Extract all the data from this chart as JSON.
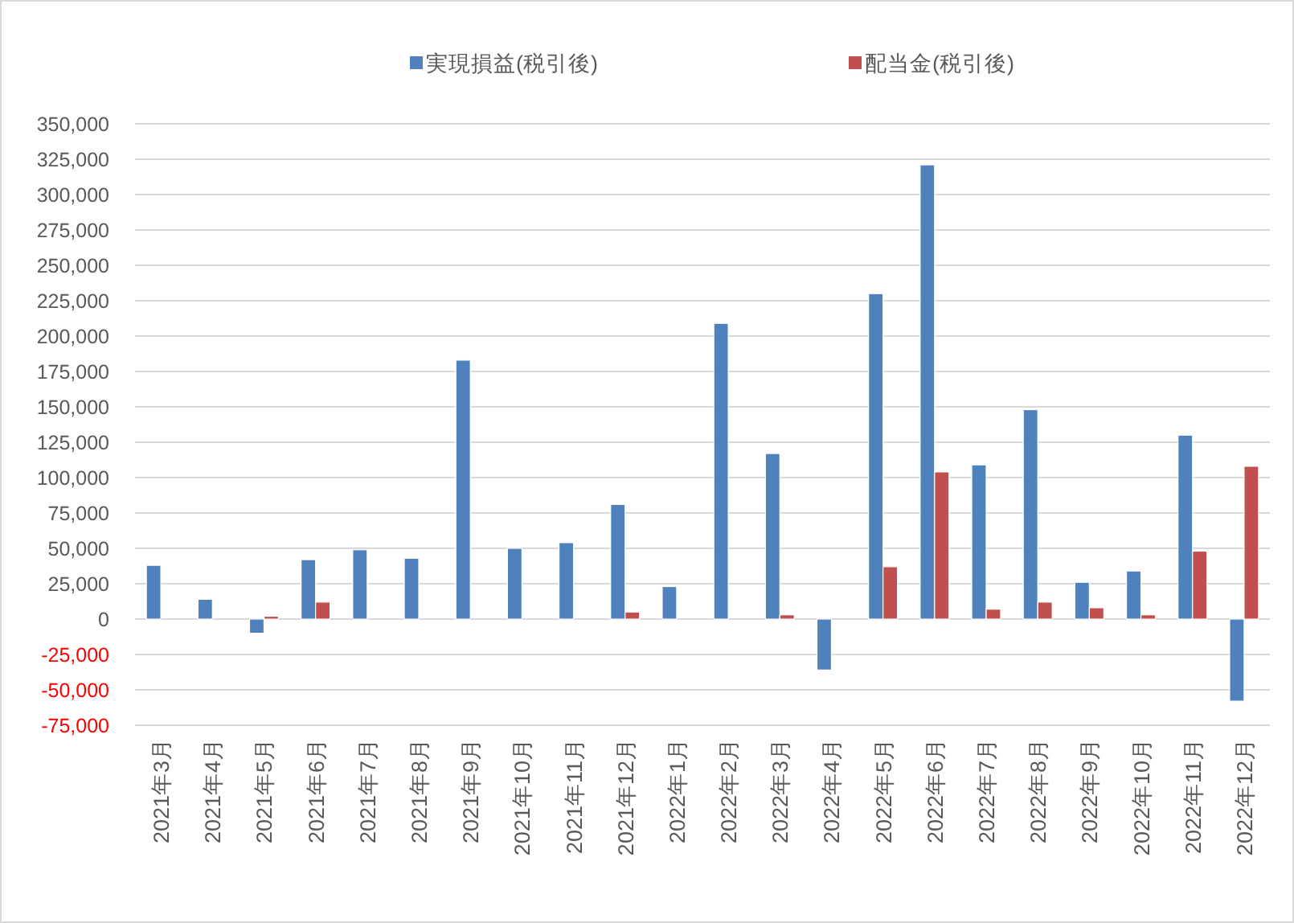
{
  "chart_data": {
    "type": "bar",
    "categories": [
      "2021年3月",
      "2021年4月",
      "2021年5月",
      "2021年6月",
      "2021年7月",
      "2021年8月",
      "2021年9月",
      "2021年10月",
      "2021年11月",
      "2021年12月",
      "2022年1月",
      "2022年2月",
      "2022年3月",
      "2022年4月",
      "2022年5月",
      "2022年6月",
      "2022年7月",
      "2022年8月",
      "2022年9月",
      "2022年10月",
      "2022年11月",
      "2022年12月"
    ],
    "series": [
      {
        "name": "実現損益(税引後)",
        "color": "#4f81bd",
        "values": [
          38000,
          14000,
          -10000,
          42000,
          49000,
          43000,
          183000,
          50000,
          54000,
          81000,
          23000,
          209000,
          117000,
          -36000,
          230000,
          321000,
          109000,
          148000,
          26000,
          34000,
          130000,
          -58000
        ]
      },
      {
        "name": "配当金(税引後)",
        "color": "#c0504d",
        "values": [
          null,
          null,
          2000,
          12000,
          null,
          null,
          null,
          null,
          null,
          5000,
          null,
          null,
          3000,
          null,
          37000,
          104000,
          7000,
          12000,
          8000,
          3000,
          48000,
          108000
        ]
      }
    ],
    "ylim": [
      -75000,
      350000
    ],
    "yticks": [
      {
        "value": -75000,
        "label": "-75,000"
      },
      {
        "value": -50000,
        "label": "-50,000"
      },
      {
        "value": -25000,
        "label": "-25,000"
      },
      0,
      {
        "value": 25000,
        "label": "25,000"
      },
      {
        "value": 50000,
        "label": "50,000"
      },
      {
        "value": 75000,
        "label": "75,000"
      },
      {
        "value": 100000,
        "label": "100,000"
      },
      {
        "value": 125000,
        "label": "125,000"
      },
      {
        "value": 150000,
        "label": "150,000"
      },
      {
        "value": 175000,
        "label": "175,000"
      },
      {
        "value": 200000,
        "label": "200,000"
      },
      {
        "value": 225000,
        "label": "225,000"
      },
      {
        "value": 250000,
        "label": "250,000"
      },
      {
        "value": 275000,
        "label": "275,000"
      },
      {
        "value": 300000,
        "label": "300,000"
      },
      {
        "value": 325000,
        "label": "325,000"
      },
      {
        "value": 350000,
        "label": "350,000"
      }
    ],
    "grid": "y",
    "legend": "top"
  }
}
